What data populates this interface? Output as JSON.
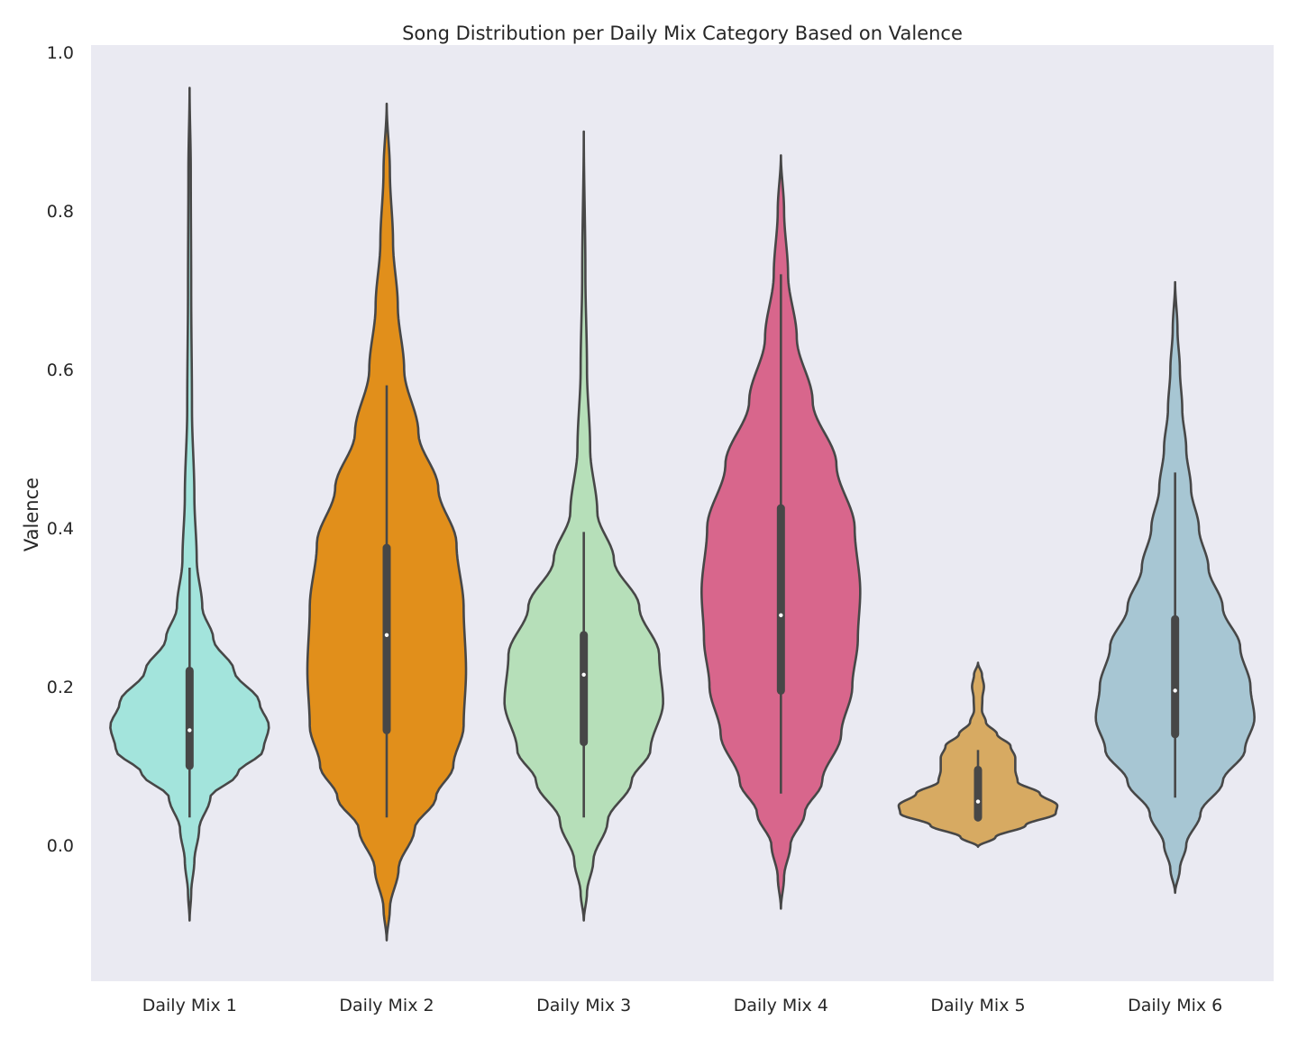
{
  "chart_data": {
    "type": "violin",
    "title": "Song Distribution per Daily Mix Category Based on Valence",
    "xlabel": "",
    "ylabel": "Valence",
    "ylim": [
      -0.17,
      1.0
    ],
    "yticks": [
      "0.0",
      "0.2",
      "0.4",
      "0.6",
      "0.8",
      "1.0"
    ],
    "ytick_values": [
      0.0,
      0.2,
      0.4,
      0.6,
      0.8,
      1.0
    ],
    "grid": false,
    "background": "#eaeaf2",
    "categories": [
      "Daily Mix 1",
      "Daily Mix 2",
      "Daily Mix 3",
      "Daily Mix 4",
      "Daily Mix 5",
      "Daily Mix 6"
    ],
    "violins": [
      {
        "name": "Daily Mix 1",
        "color": "#a3e4dc",
        "min": 0.035,
        "q1": 0.1,
        "median": 0.145,
        "q3": 0.22,
        "max": 0.35,
        "kde_range": [
          -0.095,
          0.955
        ],
        "density": [
          [
            -0.095,
            0
          ],
          [
            -0.06,
            0.02
          ],
          [
            -0.02,
            0.06
          ],
          [
            0.02,
            0.12
          ],
          [
            0.06,
            0.26
          ],
          [
            0.09,
            0.6
          ],
          [
            0.12,
            0.93
          ],
          [
            0.15,
            1.0
          ],
          [
            0.18,
            0.88
          ],
          [
            0.22,
            0.56
          ],
          [
            0.26,
            0.3
          ],
          [
            0.3,
            0.16
          ],
          [
            0.36,
            0.09
          ],
          [
            0.44,
            0.06
          ],
          [
            0.55,
            0.03
          ],
          [
            0.7,
            0.02
          ],
          [
            0.85,
            0.015
          ],
          [
            0.955,
            0
          ]
        ]
      },
      {
        "name": "Daily Mix 2",
        "color": "#e18f1b",
        "min": 0.035,
        "q1": 0.145,
        "median": 0.265,
        "q3": 0.375,
        "max": 0.58,
        "kde_range": [
          -0.12,
          0.935
        ],
        "density": [
          [
            -0.12,
            0
          ],
          [
            -0.08,
            0.04
          ],
          [
            -0.03,
            0.15
          ],
          [
            0.02,
            0.35
          ],
          [
            0.06,
            0.62
          ],
          [
            0.1,
            0.84
          ],
          [
            0.15,
            0.97
          ],
          [
            0.22,
            1.0
          ],
          [
            0.3,
            0.97
          ],
          [
            0.38,
            0.88
          ],
          [
            0.45,
            0.65
          ],
          [
            0.52,
            0.4
          ],
          [
            0.6,
            0.22
          ],
          [
            0.68,
            0.14
          ],
          [
            0.76,
            0.08
          ],
          [
            0.85,
            0.04
          ],
          [
            0.935,
            0
          ]
        ]
      },
      {
        "name": "Daily Mix 3",
        "color": "#b6dfb9",
        "min": 0.035,
        "q1": 0.13,
        "median": 0.215,
        "q3": 0.265,
        "max": 0.395,
        "kde_range": [
          -0.095,
          0.9
        ],
        "density": [
          [
            -0.095,
            0
          ],
          [
            -0.06,
            0.04
          ],
          [
            -0.02,
            0.12
          ],
          [
            0.03,
            0.3
          ],
          [
            0.08,
            0.6
          ],
          [
            0.12,
            0.84
          ],
          [
            0.18,
            1.0
          ],
          [
            0.24,
            0.95
          ],
          [
            0.3,
            0.7
          ],
          [
            0.36,
            0.38
          ],
          [
            0.42,
            0.17
          ],
          [
            0.5,
            0.08
          ],
          [
            0.6,
            0.04
          ],
          [
            0.72,
            0.02
          ],
          [
            0.9,
            0
          ]
        ]
      },
      {
        "name": "Daily Mix 4",
        "color": "#d8668c",
        "min": 0.065,
        "q1": 0.195,
        "median": 0.29,
        "q3": 0.425,
        "max": 0.72,
        "kde_range": [
          -0.08,
          0.87
        ],
        "density": [
          [
            -0.08,
            0
          ],
          [
            -0.04,
            0.04
          ],
          [
            0.0,
            0.12
          ],
          [
            0.04,
            0.3
          ],
          [
            0.08,
            0.52
          ],
          [
            0.14,
            0.76
          ],
          [
            0.2,
            0.9
          ],
          [
            0.26,
            0.97
          ],
          [
            0.32,
            1.0
          ],
          [
            0.4,
            0.93
          ],
          [
            0.48,
            0.7
          ],
          [
            0.56,
            0.4
          ],
          [
            0.64,
            0.2
          ],
          [
            0.72,
            0.09
          ],
          [
            0.8,
            0.04
          ],
          [
            0.87,
            0
          ]
        ]
      },
      {
        "name": "Daily Mix 5",
        "color": "#d7aa62",
        "min": 0.03,
        "q1": 0.035,
        "median": 0.055,
        "q3": 0.095,
        "max": 0.12,
        "kde_range": [
          -0.002,
          0.23
        ],
        "density": [
          [
            -0.002,
            0
          ],
          [
            0.01,
            0.22
          ],
          [
            0.025,
            0.6
          ],
          [
            0.04,
            0.98
          ],
          [
            0.05,
            1.0
          ],
          [
            0.065,
            0.78
          ],
          [
            0.08,
            0.5
          ],
          [
            0.095,
            0.47
          ],
          [
            0.11,
            0.47
          ],
          [
            0.125,
            0.41
          ],
          [
            0.14,
            0.24
          ],
          [
            0.155,
            0.1
          ],
          [
            0.17,
            0.05
          ],
          [
            0.185,
            0.055
          ],
          [
            0.2,
            0.075
          ],
          [
            0.215,
            0.05
          ],
          [
            0.23,
            0
          ]
        ]
      },
      {
        "name": "Daily Mix 6",
        "color": "#a7c6d3",
        "min": 0.06,
        "q1": 0.14,
        "median": 0.195,
        "q3": 0.285,
        "max": 0.47,
        "kde_range": [
          -0.06,
          0.71
        ],
        "density": [
          [
            -0.06,
            0
          ],
          [
            -0.03,
            0.06
          ],
          [
            0.0,
            0.14
          ],
          [
            0.04,
            0.32
          ],
          [
            0.08,
            0.6
          ],
          [
            0.12,
            0.88
          ],
          [
            0.16,
            1.0
          ],
          [
            0.2,
            0.95
          ],
          [
            0.25,
            0.82
          ],
          [
            0.3,
            0.6
          ],
          [
            0.35,
            0.42
          ],
          [
            0.4,
            0.3
          ],
          [
            0.45,
            0.2
          ],
          [
            0.5,
            0.14
          ],
          [
            0.55,
            0.09
          ],
          [
            0.6,
            0.06
          ],
          [
            0.65,
            0.03
          ],
          [
            0.71,
            0
          ]
        ]
      }
    ]
  }
}
